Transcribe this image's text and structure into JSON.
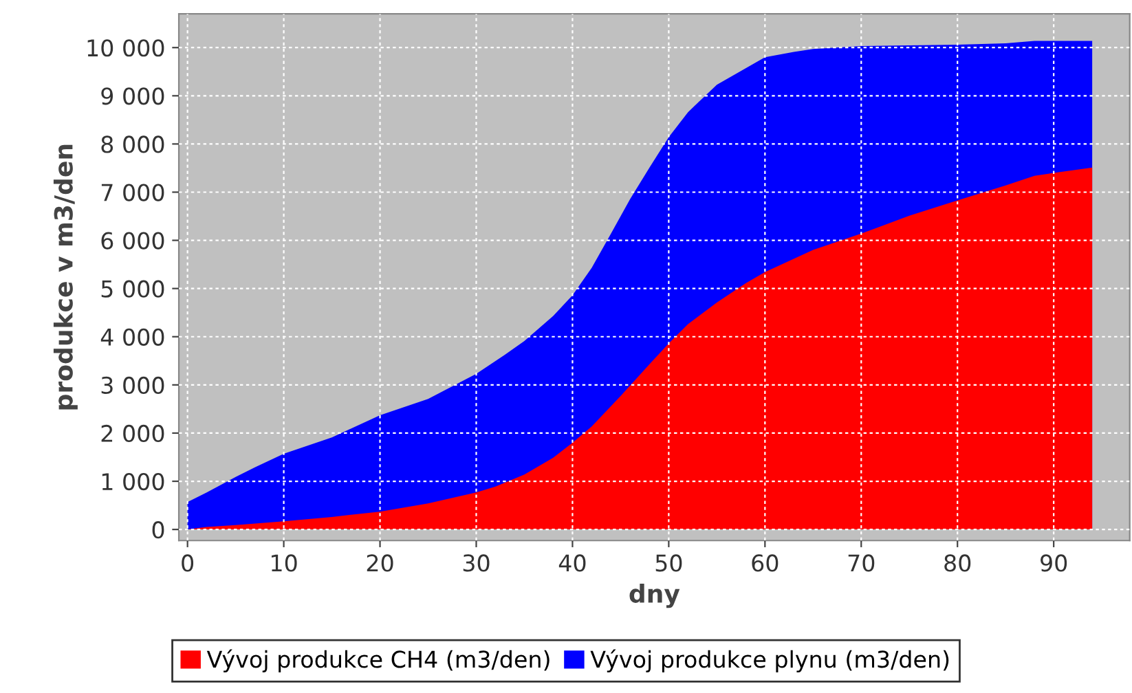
{
  "chart_data": {
    "type": "area",
    "xlabel": "dny",
    "ylabel": "produkce v m3/den",
    "xlim": [
      -0.9,
      97.9
    ],
    "ylim": [
      -230,
      10700
    ],
    "xticks": [
      0,
      10,
      20,
      30,
      40,
      50,
      60,
      70,
      80,
      90
    ],
    "yticks": [
      {
        "value": 0,
        "label": "0"
      },
      {
        "value": 1000,
        "label": "1 000"
      },
      {
        "value": 2000,
        "label": "2 000"
      },
      {
        "value": 3000,
        "label": "3 000"
      },
      {
        "value": 4000,
        "label": "4 000"
      },
      {
        "value": 5000,
        "label": "5 000"
      },
      {
        "value": 6000,
        "label": "6 000"
      },
      {
        "value": 7000,
        "label": "7 000"
      },
      {
        "value": 8000,
        "label": "8 000"
      },
      {
        "value": 9000,
        "label": "9 000"
      },
      {
        "value": 10000,
        "label": "10 000"
      }
    ],
    "grid": true,
    "legend": "bottom",
    "series": [
      {
        "name": "Vývoj produkce CH4 (m3/den)",
        "color": "#ff0000",
        "x": [
          0,
          2,
          5,
          10,
          15,
          20,
          25,
          30,
          32,
          35,
          38,
          40,
          42,
          45,
          48,
          50,
          52,
          55,
          58,
          60,
          65,
          70,
          75,
          80,
          85,
          88,
          90,
          94
        ],
        "values": [
          0,
          50,
          90,
          170,
          260,
          370,
          540,
          770,
          890,
          1140,
          1490,
          1800,
          2140,
          2770,
          3430,
          3860,
          4260,
          4710,
          5110,
          5340,
          5800,
          6140,
          6510,
          6830,
          7140,
          7340,
          7400,
          7510
        ]
      },
      {
        "name": "Vývoj produkce plynu (m3/den)",
        "color": "#0000ff",
        "x": [
          0,
          2,
          5,
          7,
          10,
          15,
          20,
          25,
          30,
          33,
          35,
          38,
          40,
          42,
          44,
          46,
          48,
          50,
          52,
          55,
          58,
          60,
          63,
          65,
          70,
          80,
          85,
          88,
          94
        ],
        "values": [
          570,
          770,
          1090,
          1290,
          1570,
          1910,
          2370,
          2710,
          3230,
          3630,
          3910,
          4430,
          4860,
          5430,
          6140,
          6860,
          7510,
          8140,
          8660,
          9230,
          9570,
          9800,
          9910,
          9970,
          10030,
          10060,
          10090,
          10140,
          10140
        ]
      }
    ]
  }
}
